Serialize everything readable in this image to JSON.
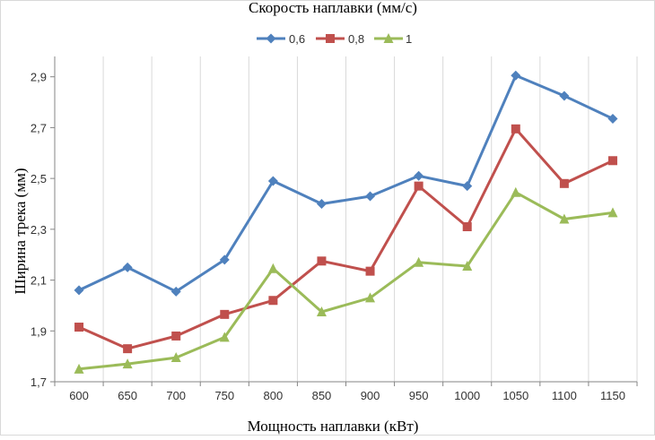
{
  "chart_data": {
    "type": "line",
    "title": "Скорость наплавки (мм/с)",
    "xlabel": "Мощность наплавки (кВт)",
    "ylabel": "Ширина трека (мм)",
    "categories": [
      "600",
      "650",
      "700",
      "750",
      "800",
      "850",
      "900",
      "950",
      "1000",
      "1050",
      "1100",
      "1150"
    ],
    "yticks": [
      "1,7",
      "1,9",
      "2,1",
      "2,3",
      "2,5",
      "2,7",
      "2,9"
    ],
    "ylim": [
      1.7,
      2.98
    ],
    "grid": "vertical",
    "legend_position": "top",
    "series": [
      {
        "name": "0,6",
        "color": "#4f81bd",
        "marker": "diamond",
        "values": [
          2.06,
          2.15,
          2.055,
          2.18,
          2.49,
          2.4,
          2.43,
          2.51,
          2.47,
          2.905,
          2.825,
          2.735
        ]
      },
      {
        "name": "0,8",
        "color": "#c0504d",
        "marker": "square",
        "values": [
          1.915,
          1.83,
          1.88,
          1.965,
          2.02,
          2.175,
          2.135,
          2.47,
          2.31,
          2.695,
          2.48,
          2.57
        ]
      },
      {
        "name": "1",
        "color": "#9bbb59",
        "marker": "triangle",
        "values": [
          1.75,
          1.77,
          1.795,
          1.875,
          2.145,
          1.975,
          2.03,
          2.17,
          2.155,
          2.445,
          2.34,
          2.365
        ]
      }
    ]
  }
}
